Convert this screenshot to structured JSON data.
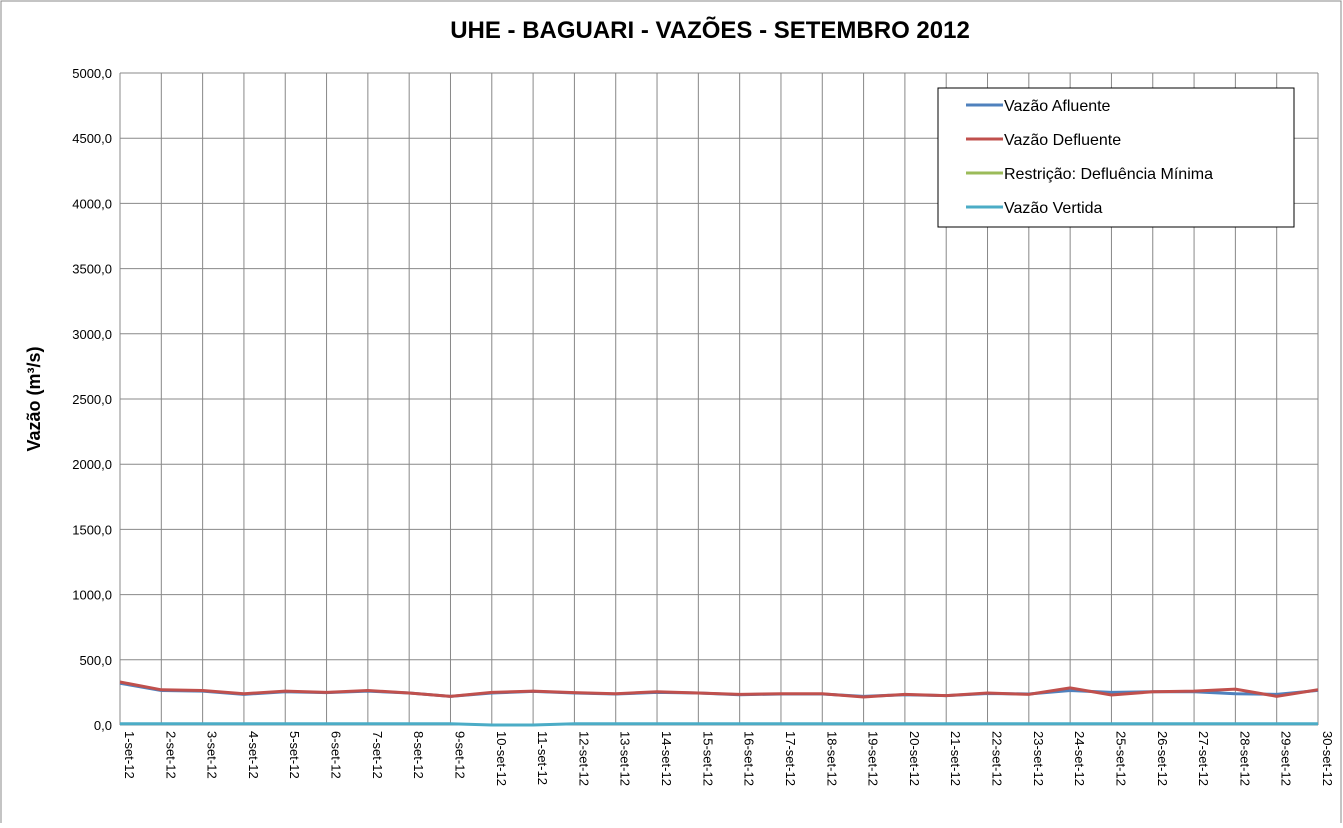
{
  "chart_data": {
    "type": "line",
    "title": "UHE - BAGUARI - VAZÕES - SETEMBRO 2012",
    "y_label": "Vazão (m³/s)",
    "categories": [
      "1-set-12",
      "2-set-12",
      "3-set-12",
      "4-set-12",
      "5-set-12",
      "6-set-12",
      "7-set-12",
      "8-set-12",
      "9-set-12",
      "10-set-12",
      "11-set-12",
      "12-set-12",
      "13-set-12",
      "14-set-12",
      "15-set-12",
      "16-set-12",
      "17-set-12",
      "18-set-12",
      "19-set-12",
      "20-set-12",
      "21-set-12",
      "22-set-12",
      "23-set-12",
      "24-set-12",
      "25-set-12",
      "26-set-12",
      "27-set-12",
      "28-set-12",
      "29-set-12",
      "30-set-12"
    ],
    "series": [
      {
        "name": "Vazão Afluente",
        "color": "#4f81bd",
        "values": [
          320,
          265,
          260,
          235,
          255,
          248,
          260,
          245,
          220,
          245,
          258,
          245,
          238,
          250,
          245,
          232,
          238,
          238,
          220,
          232,
          225,
          242,
          238,
          265,
          250,
          255,
          255,
          240,
          235,
          265
        ]
      },
      {
        "name": "Vazão Defluente",
        "color": "#c0504d",
        "values": [
          330,
          270,
          265,
          240,
          260,
          250,
          265,
          245,
          220,
          250,
          260,
          248,
          240,
          255,
          245,
          235,
          240,
          240,
          215,
          235,
          225,
          245,
          235,
          285,
          230,
          255,
          260,
          275,
          220,
          270
        ]
      },
      {
        "name": "Restrição: Defluência Mínima",
        "color": "#9bbb59",
        "values": [
          null,
          null,
          null,
          null,
          null,
          null,
          null,
          null,
          null,
          null,
          null,
          null,
          null,
          null,
          null,
          null,
          null,
          null,
          null,
          null,
          null,
          null,
          null,
          null,
          null,
          null,
          null,
          null,
          null,
          null
        ]
      },
      {
        "name": "Vazão Vertida",
        "color": "#4bacc6",
        "values": [
          10,
          10,
          10,
          10,
          10,
          10,
          10,
          10,
          10,
          0,
          0,
          10,
          10,
          10,
          10,
          10,
          10,
          10,
          10,
          10,
          10,
          10,
          10,
          10,
          10,
          10,
          10,
          10,
          10,
          10
        ]
      }
    ],
    "ylim": [
      0,
      5000
    ],
    "yticks": [
      {
        "value": 0,
        "label": "0,0"
      },
      {
        "value": 500,
        "label": "500,0"
      },
      {
        "value": 1000,
        "label": "1000,0"
      },
      {
        "value": 1500,
        "label": "1500,0"
      },
      {
        "value": 2000,
        "label": "2000,0"
      },
      {
        "value": 2500,
        "label": "2500,0"
      },
      {
        "value": 3000,
        "label": "3000,0"
      },
      {
        "value": 3500,
        "label": "3500,0"
      },
      {
        "value": 4000,
        "label": "4000,0"
      },
      {
        "value": 4500,
        "label": "4500,0"
      },
      {
        "value": 5000,
        "label": "5000,0"
      }
    ],
    "grid": true,
    "legend": "top-right"
  }
}
